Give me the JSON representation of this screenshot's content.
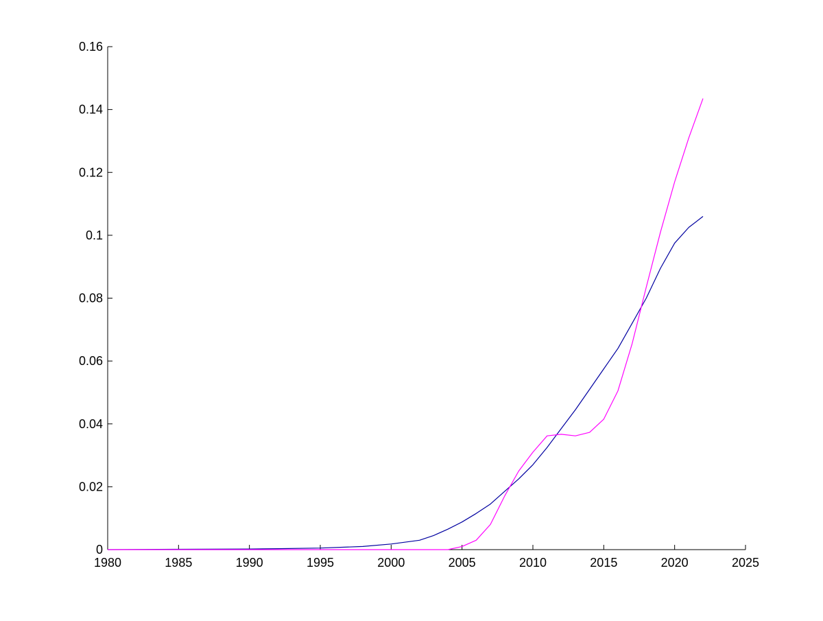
{
  "chart_data": {
    "type": "line",
    "title": "",
    "xlabel": "",
    "ylabel": "",
    "xlim": [
      1980,
      2025
    ],
    "ylim": [
      0,
      0.16
    ],
    "grid": false,
    "x_ticks": [
      1980,
      1985,
      1990,
      1995,
      2000,
      2005,
      2010,
      2015,
      2020,
      2025
    ],
    "x_tick_labels": [
      "1980",
      "1985",
      "1990",
      "1995",
      "2000",
      "2005",
      "2010",
      "2015",
      "2020",
      "2025"
    ],
    "y_ticks": [
      0,
      0.02,
      0.04,
      0.06,
      0.08,
      0.1,
      0.12,
      0.14,
      0.16
    ],
    "y_tick_labels": [
      "0",
      "0.02",
      "0.04",
      "0.06",
      "0.08",
      "0.1",
      "0.12",
      "0.14",
      "0.16"
    ],
    "series": [
      {
        "color": "#0000a0",
        "x": [
          1980,
          1985,
          1990,
          1992,
          1995,
          1998,
          2000,
          2002,
          2003,
          2004,
          2005,
          2006,
          2007,
          2008,
          2009,
          2010,
          2011,
          2012,
          2013,
          2014,
          2015,
          2016,
          2017,
          2018,
          2019,
          2020,
          2021,
          2022
        ],
        "y": [
          0,
          0.0001,
          0.0002,
          0.0003,
          0.0005,
          0.001,
          0.0018,
          0.003,
          0.0045,
          0.0065,
          0.0088,
          0.0115,
          0.0145,
          0.0185,
          0.0225,
          0.027,
          0.0325,
          0.0385,
          0.0445,
          0.051,
          0.0575,
          0.064,
          0.072,
          0.08,
          0.0895,
          0.0975,
          0.1025,
          0.106
        ]
      },
      {
        "color": "#ff00ff",
        "x": [
          1980,
          2004,
          2005,
          2006,
          2007,
          2008,
          2009,
          2010,
          2011,
          2012,
          2013,
          2014,
          2015,
          2016,
          2017,
          2018,
          2019,
          2020,
          2021,
          2022
        ],
        "y": [
          0,
          0,
          0.001,
          0.003,
          0.008,
          0.017,
          0.025,
          0.031,
          0.0362,
          0.0367,
          0.0362,
          0.0373,
          0.0415,
          0.0505,
          0.0655,
          0.0835,
          0.101,
          0.117,
          0.131,
          0.1435
        ]
      }
    ]
  }
}
